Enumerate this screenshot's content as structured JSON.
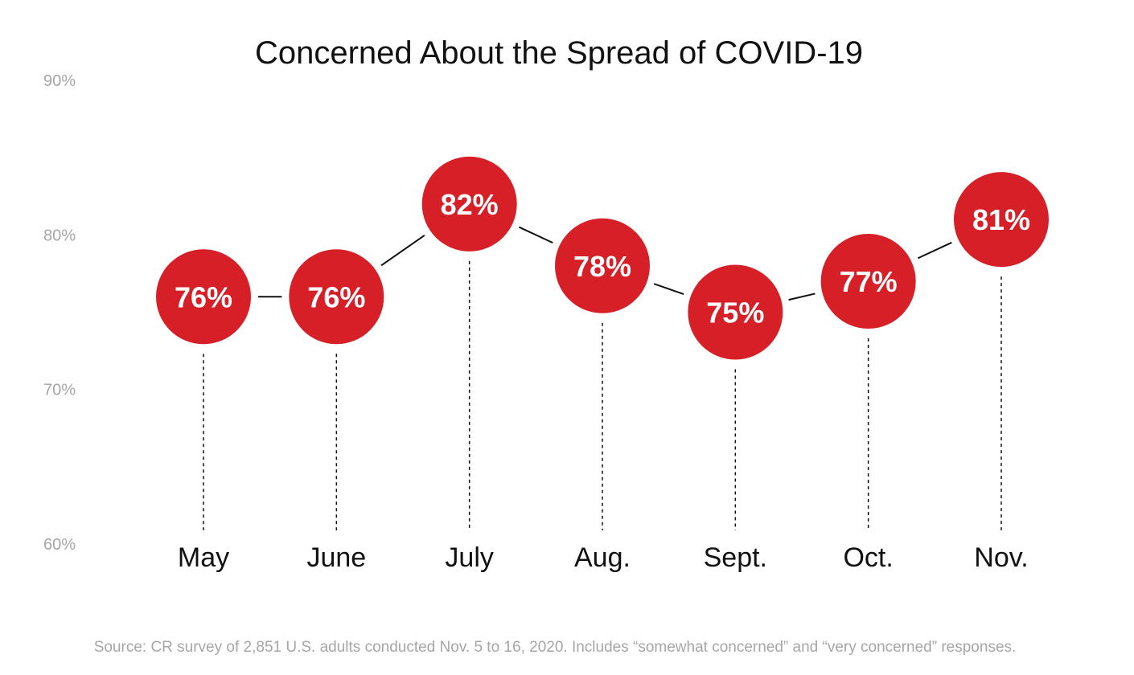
{
  "title": "Concerned About the Spread of COVID-19",
  "source": "Source: CR survey of 2,851 U.S. adults conducted Nov. 5 to 16, 2020. Includes “somewhat concerned” and “very concerned” responses.",
  "colors": {
    "marker": "#d71f27",
    "marker_text": "#ffffff",
    "axis_text": "#a6a6a6",
    "category_text": "#111111",
    "connector": "#111111"
  },
  "chart_data": {
    "type": "line",
    "title": "Concerned About the Spread of COVID-19",
    "categories": [
      "May",
      "June",
      "July",
      "Aug.",
      "Sept.",
      "Oct.",
      "Nov."
    ],
    "values": [
      76,
      76,
      82,
      78,
      75,
      77,
      81
    ],
    "value_labels": [
      "76%",
      "76%",
      "82%",
      "78%",
      "75%",
      "77%",
      "81%"
    ],
    "y_ticks": [
      60,
      70,
      80,
      90
    ],
    "y_tick_labels": [
      "60%",
      "70%",
      "80%",
      "90%"
    ],
    "ylim": [
      60,
      90
    ],
    "xlabel": "",
    "ylabel": "",
    "grid": false,
    "legend": "none",
    "marker_style": "large filled circles with value labels, dotted drop lines to baseline"
  }
}
